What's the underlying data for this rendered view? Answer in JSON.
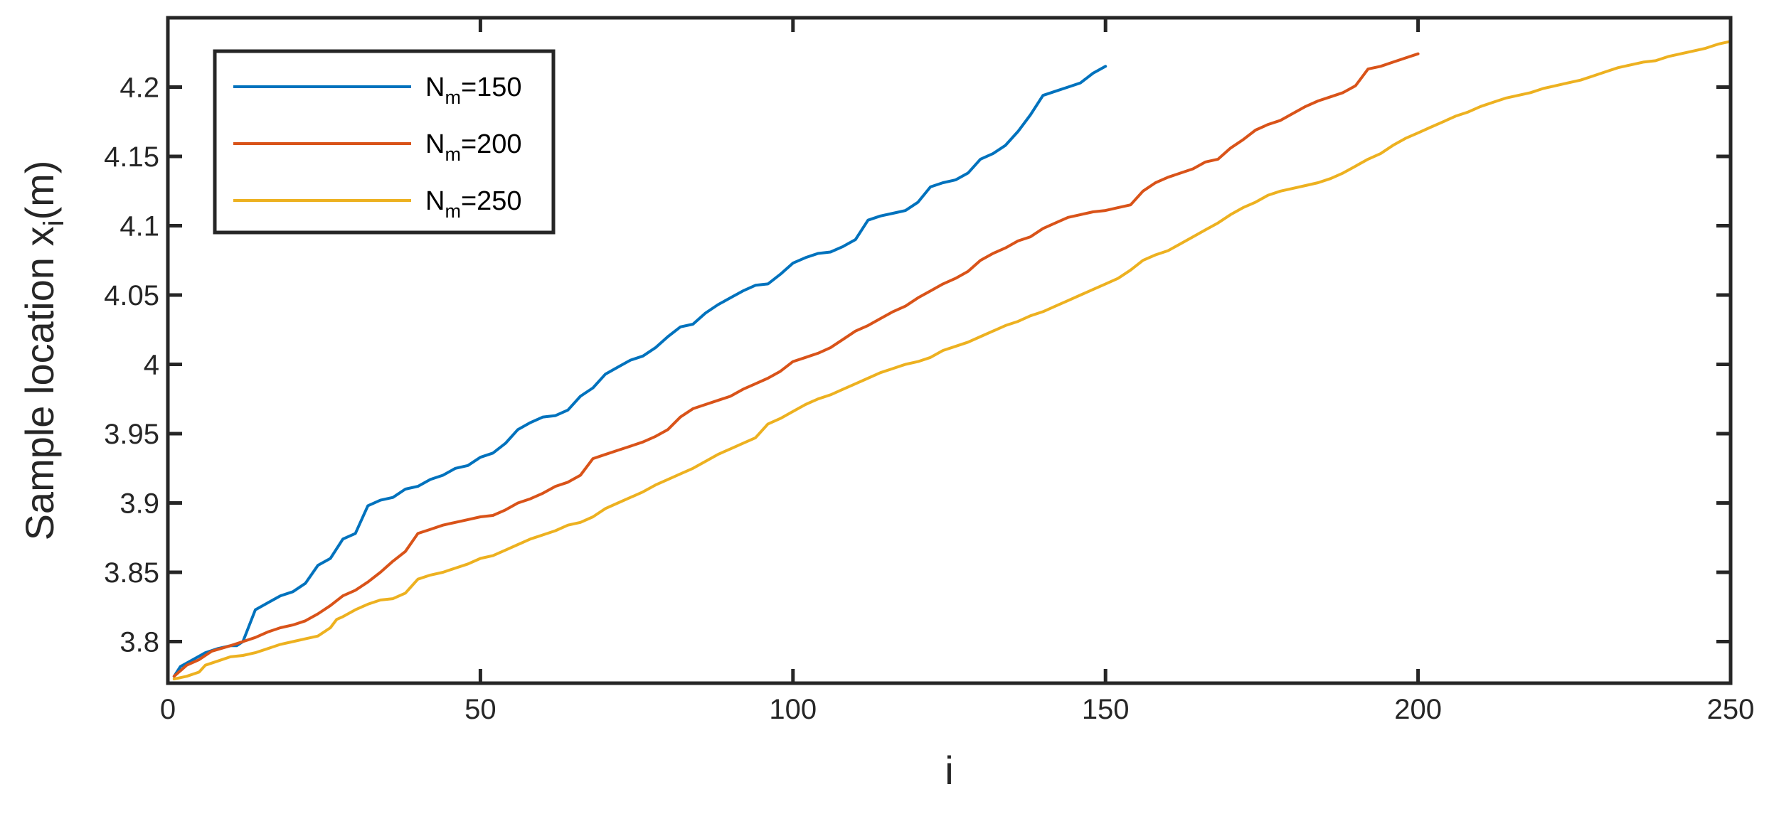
{
  "chart_data": {
    "type": "line",
    "title": "",
    "xlabel": "i",
    "ylabel_main": "Sample location x",
    "ylabel_sub": "i",
    "ylabel_suffix": "(m)",
    "xlim": [
      0,
      250
    ],
    "ylim": [
      3.77,
      4.25
    ],
    "xticks": [
      0,
      50,
      100,
      150,
      200,
      250
    ],
    "xtick_labels": [
      "0",
      "50",
      "100",
      "150",
      "200",
      "250"
    ],
    "yticks": [
      3.8,
      3.85,
      3.9,
      3.95,
      4.0,
      4.05,
      4.1,
      4.15,
      4.2
    ],
    "ytick_labels": [
      "3.8",
      "3.85",
      "3.9",
      "3.95",
      "4",
      "4.05",
      "4.1",
      "4.15",
      "4.2"
    ],
    "grid": false,
    "legend_position": "top-left",
    "series": [
      {
        "legend_main": "N",
        "legend_sub": "m",
        "legend_suffix": "=150",
        "color": "#0072BD",
        "points": [
          [
            1,
            3.775
          ],
          [
            2,
            3.782
          ],
          [
            4,
            3.787
          ],
          [
            6,
            3.792
          ],
          [
            8,
            3.795
          ],
          [
            10,
            3.797
          ],
          [
            11,
            3.797
          ],
          [
            12,
            3.8
          ],
          [
            14,
            3.823
          ],
          [
            16,
            3.828
          ],
          [
            18,
            3.833
          ],
          [
            20,
            3.836
          ],
          [
            22,
            3.842
          ],
          [
            24,
            3.855
          ],
          [
            26,
            3.86
          ],
          [
            28,
            3.874
          ],
          [
            30,
            3.878
          ],
          [
            32,
            3.898
          ],
          [
            34,
            3.902
          ],
          [
            36,
            3.904
          ],
          [
            38,
            3.91
          ],
          [
            40,
            3.912
          ],
          [
            42,
            3.917
          ],
          [
            44,
            3.92
          ],
          [
            46,
            3.925
          ],
          [
            48,
            3.927
          ],
          [
            50,
            3.933
          ],
          [
            52,
            3.936
          ],
          [
            54,
            3.943
          ],
          [
            56,
            3.953
          ],
          [
            58,
            3.958
          ],
          [
            60,
            3.962
          ],
          [
            62,
            3.963
          ],
          [
            64,
            3.967
          ],
          [
            66,
            3.977
          ],
          [
            68,
            3.983
          ],
          [
            70,
            3.993
          ],
          [
            72,
            3.998
          ],
          [
            74,
            4.003
          ],
          [
            76,
            4.006
          ],
          [
            78,
            4.012
          ],
          [
            80,
            4.02
          ],
          [
            82,
            4.027
          ],
          [
            84,
            4.029
          ],
          [
            86,
            4.037
          ],
          [
            88,
            4.043
          ],
          [
            90,
            4.048
          ],
          [
            92,
            4.053
          ],
          [
            94,
            4.057
          ],
          [
            96,
            4.058
          ],
          [
            98,
            4.065
          ],
          [
            100,
            4.073
          ],
          [
            102,
            4.077
          ],
          [
            104,
            4.08
          ],
          [
            106,
            4.081
          ],
          [
            108,
            4.085
          ],
          [
            110,
            4.09
          ],
          [
            112,
            4.104
          ],
          [
            114,
            4.107
          ],
          [
            116,
            4.109
          ],
          [
            118,
            4.111
          ],
          [
            120,
            4.117
          ],
          [
            122,
            4.128
          ],
          [
            124,
            4.131
          ],
          [
            126,
            4.133
          ],
          [
            128,
            4.138
          ],
          [
            130,
            4.148
          ],
          [
            132,
            4.152
          ],
          [
            134,
            4.158
          ],
          [
            136,
            4.168
          ],
          [
            138,
            4.18
          ],
          [
            140,
            4.194
          ],
          [
            142,
            4.197
          ],
          [
            144,
            4.2
          ],
          [
            146,
            4.203
          ],
          [
            148,
            4.21
          ],
          [
            150,
            4.215
          ]
        ]
      },
      {
        "legend_main": "N",
        "legend_sub": "m",
        "legend_suffix": "=200",
        "color": "#D95319",
        "points": [
          [
            1,
            3.775
          ],
          [
            3,
            3.783
          ],
          [
            5,
            3.787
          ],
          [
            7,
            3.793
          ],
          [
            10,
            3.797
          ],
          [
            12,
            3.8
          ],
          [
            14,
            3.803
          ],
          [
            16,
            3.807
          ],
          [
            18,
            3.81
          ],
          [
            20,
            3.812
          ],
          [
            22,
            3.815
          ],
          [
            24,
            3.82
          ],
          [
            26,
            3.826
          ],
          [
            28,
            3.833
          ],
          [
            30,
            3.837
          ],
          [
            32,
            3.843
          ],
          [
            34,
            3.85
          ],
          [
            36,
            3.858
          ],
          [
            38,
            3.865
          ],
          [
            40,
            3.878
          ],
          [
            42,
            3.881
          ],
          [
            44,
            3.884
          ],
          [
            46,
            3.886
          ],
          [
            48,
            3.888
          ],
          [
            50,
            3.89
          ],
          [
            52,
            3.891
          ],
          [
            54,
            3.895
          ],
          [
            56,
            3.9
          ],
          [
            58,
            3.903
          ],
          [
            60,
            3.907
          ],
          [
            62,
            3.912
          ],
          [
            64,
            3.915
          ],
          [
            66,
            3.92
          ],
          [
            68,
            3.932
          ],
          [
            70,
            3.935
          ],
          [
            72,
            3.938
          ],
          [
            74,
            3.941
          ],
          [
            76,
            3.944
          ],
          [
            78,
            3.948
          ],
          [
            80,
            3.953
          ],
          [
            82,
            3.962
          ],
          [
            84,
            3.968
          ],
          [
            86,
            3.971
          ],
          [
            88,
            3.974
          ],
          [
            90,
            3.977
          ],
          [
            92,
            3.982
          ],
          [
            94,
            3.986
          ],
          [
            96,
            3.99
          ],
          [
            98,
            3.995
          ],
          [
            100,
            4.002
          ],
          [
            102,
            4.005
          ],
          [
            104,
            4.008
          ],
          [
            106,
            4.012
          ],
          [
            108,
            4.018
          ],
          [
            110,
            4.024
          ],
          [
            112,
            4.028
          ],
          [
            114,
            4.033
          ],
          [
            116,
            4.038
          ],
          [
            118,
            4.042
          ],
          [
            120,
            4.048
          ],
          [
            122,
            4.053
          ],
          [
            124,
            4.058
          ],
          [
            126,
            4.062
          ],
          [
            128,
            4.067
          ],
          [
            130,
            4.075
          ],
          [
            132,
            4.08
          ],
          [
            134,
            4.084
          ],
          [
            136,
            4.089
          ],
          [
            138,
            4.092
          ],
          [
            140,
            4.098
          ],
          [
            142,
            4.102
          ],
          [
            144,
            4.106
          ],
          [
            146,
            4.108
          ],
          [
            148,
            4.11
          ],
          [
            150,
            4.111
          ],
          [
            152,
            4.113
          ],
          [
            154,
            4.115
          ],
          [
            156,
            4.125
          ],
          [
            158,
            4.131
          ],
          [
            160,
            4.135
          ],
          [
            162,
            4.138
          ],
          [
            164,
            4.141
          ],
          [
            166,
            4.146
          ],
          [
            168,
            4.148
          ],
          [
            170,
            4.156
          ],
          [
            172,
            4.162
          ],
          [
            174,
            4.169
          ],
          [
            176,
            4.173
          ],
          [
            178,
            4.176
          ],
          [
            180,
            4.181
          ],
          [
            182,
            4.186
          ],
          [
            184,
            4.19
          ],
          [
            186,
            4.193
          ],
          [
            188,
            4.196
          ],
          [
            190,
            4.201
          ],
          [
            192,
            4.213
          ],
          [
            194,
            4.215
          ],
          [
            196,
            4.218
          ],
          [
            198,
            4.221
          ],
          [
            200,
            4.224
          ]
        ]
      },
      {
        "legend_main": "N",
        "legend_sub": "m",
        "legend_suffix": "=250",
        "color": "#EDB120",
        "points": [
          [
            1,
            3.773
          ],
          [
            3,
            3.775
          ],
          [
            5,
            3.778
          ],
          [
            6,
            3.783
          ],
          [
            8,
            3.786
          ],
          [
            10,
            3.789
          ],
          [
            12,
            3.79
          ],
          [
            14,
            3.792
          ],
          [
            16,
            3.795
          ],
          [
            18,
            3.798
          ],
          [
            20,
            3.8
          ],
          [
            22,
            3.802
          ],
          [
            24,
            3.804
          ],
          [
            26,
            3.81
          ],
          [
            27,
            3.816
          ],
          [
            28,
            3.818
          ],
          [
            30,
            3.823
          ],
          [
            32,
            3.827
          ],
          [
            34,
            3.83
          ],
          [
            36,
            3.831
          ],
          [
            38,
            3.835
          ],
          [
            40,
            3.845
          ],
          [
            42,
            3.848
          ],
          [
            44,
            3.85
          ],
          [
            46,
            3.853
          ],
          [
            48,
            3.856
          ],
          [
            50,
            3.86
          ],
          [
            52,
            3.862
          ],
          [
            54,
            3.866
          ],
          [
            56,
            3.87
          ],
          [
            58,
            3.874
          ],
          [
            60,
            3.877
          ],
          [
            62,
            3.88
          ],
          [
            64,
            3.884
          ],
          [
            66,
            3.886
          ],
          [
            68,
            3.89
          ],
          [
            70,
            3.896
          ],
          [
            72,
            3.9
          ],
          [
            74,
            3.904
          ],
          [
            76,
            3.908
          ],
          [
            78,
            3.913
          ],
          [
            80,
            3.917
          ],
          [
            82,
            3.921
          ],
          [
            84,
            3.925
          ],
          [
            86,
            3.93
          ],
          [
            88,
            3.935
          ],
          [
            90,
            3.939
          ],
          [
            92,
            3.943
          ],
          [
            94,
            3.947
          ],
          [
            96,
            3.957
          ],
          [
            98,
            3.961
          ],
          [
            100,
            3.966
          ],
          [
            102,
            3.971
          ],
          [
            104,
            3.975
          ],
          [
            106,
            3.978
          ],
          [
            108,
            3.982
          ],
          [
            110,
            3.986
          ],
          [
            112,
            3.99
          ],
          [
            114,
            3.994
          ],
          [
            116,
            3.997
          ],
          [
            118,
            4.0
          ],
          [
            120,
            4.002
          ],
          [
            122,
            4.005
          ],
          [
            124,
            4.01
          ],
          [
            126,
            4.013
          ],
          [
            128,
            4.016
          ],
          [
            130,
            4.02
          ],
          [
            132,
            4.024
          ],
          [
            134,
            4.028
          ],
          [
            136,
            4.031
          ],
          [
            138,
            4.035
          ],
          [
            140,
            4.038
          ],
          [
            142,
            4.042
          ],
          [
            144,
            4.046
          ],
          [
            146,
            4.05
          ],
          [
            148,
            4.054
          ],
          [
            150,
            4.058
          ],
          [
            152,
            4.062
          ],
          [
            154,
            4.068
          ],
          [
            156,
            4.075
          ],
          [
            158,
            4.079
          ],
          [
            160,
            4.082
          ],
          [
            162,
            4.087
          ],
          [
            164,
            4.092
          ],
          [
            166,
            4.097
          ],
          [
            168,
            4.102
          ],
          [
            170,
            4.108
          ],
          [
            172,
            4.113
          ],
          [
            174,
            4.117
          ],
          [
            176,
            4.122
          ],
          [
            178,
            4.125
          ],
          [
            180,
            4.127
          ],
          [
            182,
            4.129
          ],
          [
            184,
            4.131
          ],
          [
            186,
            4.134
          ],
          [
            188,
            4.138
          ],
          [
            190,
            4.143
          ],
          [
            192,
            4.148
          ],
          [
            194,
            4.152
          ],
          [
            196,
            4.158
          ],
          [
            198,
            4.163
          ],
          [
            200,
            4.167
          ],
          [
            202,
            4.171
          ],
          [
            204,
            4.175
          ],
          [
            206,
            4.179
          ],
          [
            208,
            4.182
          ],
          [
            210,
            4.186
          ],
          [
            212,
            4.189
          ],
          [
            214,
            4.192
          ],
          [
            216,
            4.194
          ],
          [
            218,
            4.196
          ],
          [
            220,
            4.199
          ],
          [
            222,
            4.201
          ],
          [
            224,
            4.203
          ],
          [
            226,
            4.205
          ],
          [
            228,
            4.208
          ],
          [
            230,
            4.211
          ],
          [
            232,
            4.214
          ],
          [
            234,
            4.216
          ],
          [
            236,
            4.218
          ],
          [
            238,
            4.219
          ],
          [
            240,
            4.222
          ],
          [
            242,
            4.224
          ],
          [
            244,
            4.226
          ],
          [
            246,
            4.228
          ],
          [
            248,
            4.231
          ],
          [
            250,
            4.233
          ]
        ]
      }
    ]
  }
}
